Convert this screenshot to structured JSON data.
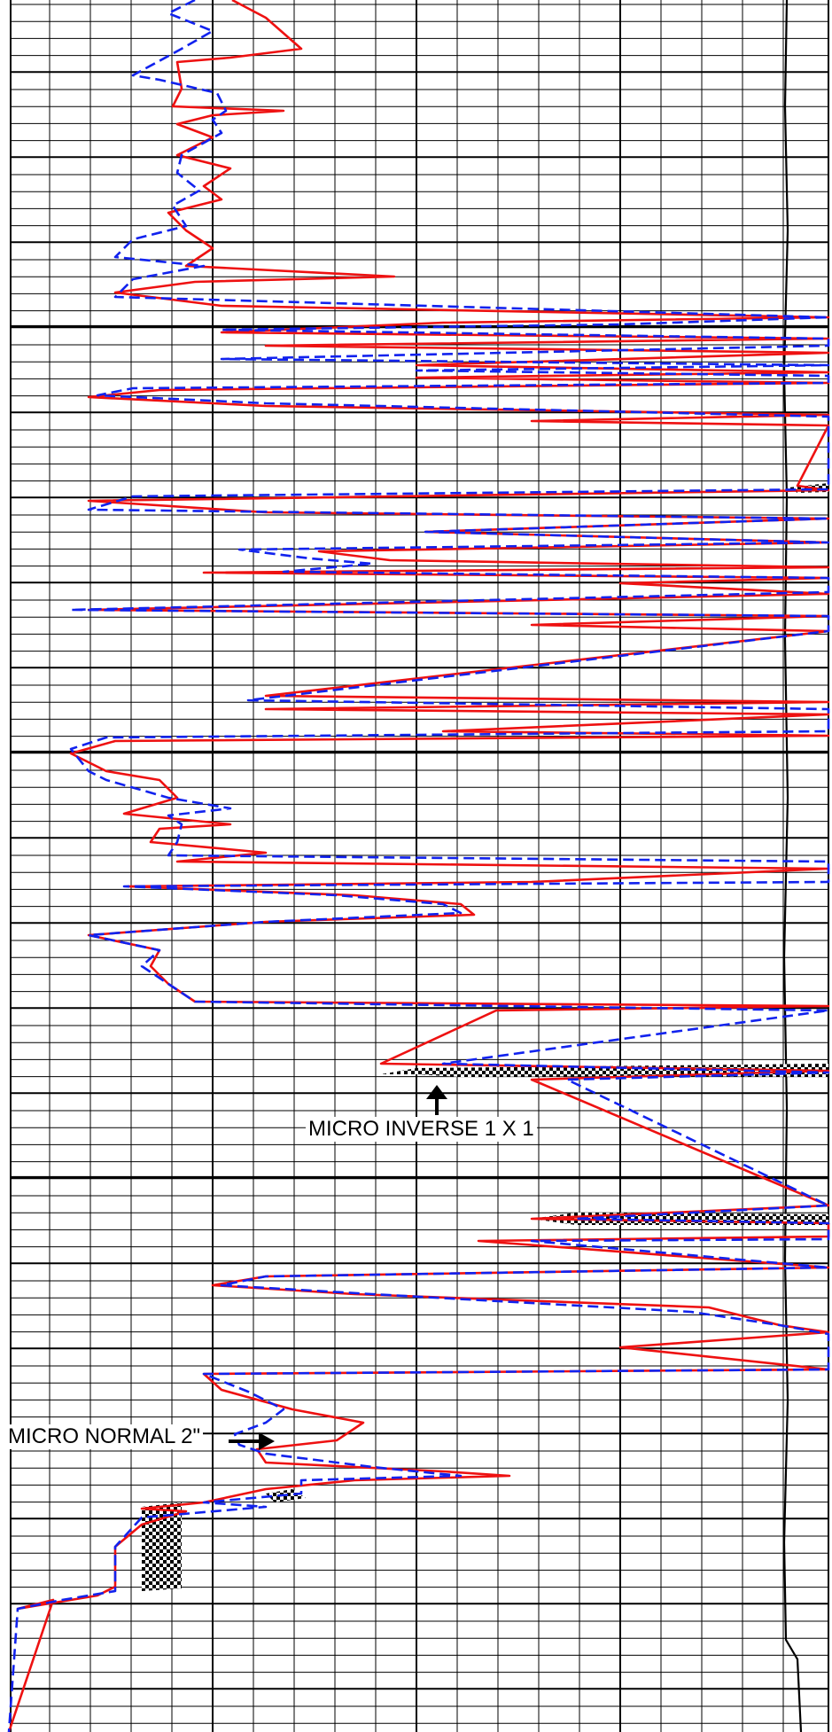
{
  "chart_data": {
    "type": "line",
    "title": "",
    "xlabel": "",
    "ylabel": "",
    "grid": true,
    "colors": {
      "micro_inverse": "#ee1111",
      "micro_normal": "#1122ee",
      "grid": "#000000",
      "background": "#ffffff",
      "fill_pattern": "checkerboard-black"
    },
    "series": [
      {
        "name": "MICRO INVERSE 1 X 1",
        "line_style": "solid"
      },
      {
        "name": "MICRO NORMAL 2\"",
        "line_style": "dashed"
      }
    ],
    "annotations": [
      {
        "text": "MICRO INVERSE 1 X 1",
        "points_to": "MICRO INVERSE 1 X 1",
        "arrow_direction": "up"
      },
      {
        "text": "MICRO NORMAL 2\"",
        "points_to": "MICRO NORMAL 2\"",
        "arrow_direction": "right"
      }
    ]
  }
}
